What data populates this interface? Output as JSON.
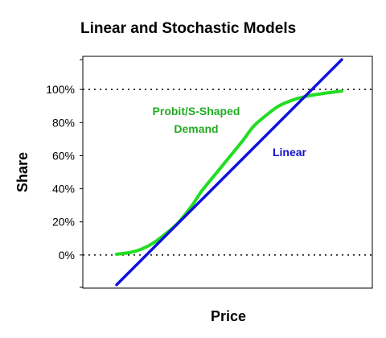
{
  "chart_data": {
    "type": "line",
    "title": "Linear and Stochastic Models",
    "xlabel": "Price",
    "ylabel": "Share",
    "ylim": [
      -20,
      120
    ],
    "xlim": [
      0,
      1
    ],
    "yticks": [
      0,
      20,
      40,
      60,
      80,
      100
    ],
    "ytick_labels": [
      "0%",
      "20%",
      "40%",
      "60%",
      "80%",
      "100%"
    ],
    "xticks_shown": false,
    "reference_lines": [
      {
        "y": 100,
        "style": "dotted",
        "color": "#000000"
      },
      {
        "y": 0,
        "style": "dotted",
        "color": "#000000"
      }
    ],
    "series": [
      {
        "name": "Probit/S-Shaped Demand",
        "color": "#22dd22",
        "x": [
          0.0,
          0.06,
          0.11,
          0.16,
          0.21,
          0.27,
          0.33,
          0.38,
          0.44,
          0.5,
          0.56,
          0.61,
          0.67,
          0.72,
          0.78,
          0.83,
          0.89,
          0.94,
          1.0
        ],
        "y": [
          0.5,
          1.5,
          3.5,
          7,
          12,
          19,
          29,
          39,
          49,
          59,
          69,
          78,
          85,
          90,
          93.5,
          95.5,
          97,
          98,
          99
        ]
      },
      {
        "name": "Linear",
        "color": "#1111dd",
        "x": [
          0.0,
          1.0
        ],
        "y": [
          -18,
          118
        ]
      }
    ],
    "annotations": [
      {
        "text": "Probit/S-Shaped",
        "series": "Probit/S-Shaped Demand"
      },
      {
        "text": "Demand",
        "series": "Probit/S-Shaped Demand"
      },
      {
        "text": "Linear",
        "series": "Linear"
      }
    ],
    "grid": false,
    "legend": "none"
  }
}
